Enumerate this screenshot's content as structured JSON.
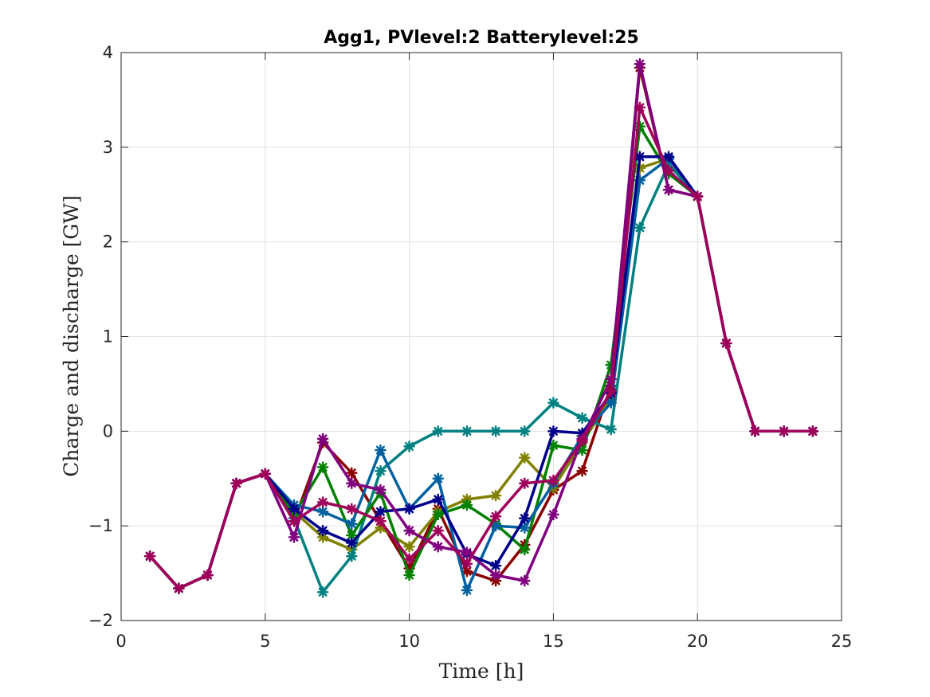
{
  "chart_data": {
    "type": "line",
    "title": "Agg1, PVlevel:2 Batterylevel:25",
    "xlabel": "Time [h]",
    "ylabel": "Charge and discharge [GW]",
    "xlim": [
      0,
      25
    ],
    "ylim": [
      -2,
      4
    ],
    "xticks": [
      0,
      5,
      10,
      15,
      20,
      25
    ],
    "yticks": [
      -2,
      -1,
      0,
      1,
      2,
      3,
      4
    ],
    "xtick_labels": [
      "0",
      "5",
      "10",
      "15",
      "20",
      "25"
    ],
    "ytick_labels": [
      "−2",
      "−1",
      "0",
      "1",
      "2",
      "3",
      "4"
    ],
    "grid": true,
    "marker": "asterisk",
    "x": [
      1,
      2,
      3,
      4,
      5,
      6,
      7,
      8,
      9,
      10,
      11,
      12,
      13,
      14,
      15,
      16,
      17,
      18,
      19,
      20,
      21,
      22,
      23,
      24
    ],
    "series": [
      {
        "color": "#8B0000",
        "values": [
          -1.32,
          -1.66,
          -1.52,
          -0.55,
          -0.45,
          -0.95,
          -0.12,
          -0.44,
          -0.95,
          -1.45,
          -0.82,
          -1.48,
          -1.58,
          -1.2,
          -0.62,
          -0.42,
          0.48,
          3.84,
          2.55,
          2.48,
          0.93,
          0,
          0,
          0
        ]
      },
      {
        "color": "#808000",
        "values": [
          -1.32,
          -1.66,
          -1.52,
          -0.55,
          -0.45,
          -0.85,
          -1.12,
          -1.25,
          -1.02,
          -1.22,
          -0.85,
          -0.72,
          -0.68,
          -0.28,
          -0.6,
          -0.12,
          0.35,
          2.78,
          2.88,
          2.48,
          0.93,
          0,
          0,
          0
        ]
      },
      {
        "color": "#008080",
        "values": [
          -1.32,
          -1.66,
          -1.52,
          -0.55,
          -0.45,
          -0.92,
          -1.7,
          -1.32,
          -0.42,
          -0.16,
          0,
          0,
          0,
          0,
          0.3,
          0.14,
          0.02,
          2.15,
          2.82,
          2.48,
          0.93,
          0,
          0,
          0
        ]
      },
      {
        "color": "#008000",
        "values": [
          -1.32,
          -1.66,
          -1.52,
          -0.55,
          -0.45,
          -0.88,
          -0.38,
          -1.1,
          -0.65,
          -1.52,
          -0.88,
          -0.78,
          -0.98,
          -1.25,
          -0.15,
          -0.2,
          0.7,
          3.22,
          2.72,
          2.48,
          0.93,
          0,
          0,
          0
        ]
      },
      {
        "color": "#0060A0",
        "values": [
          -1.32,
          -1.66,
          -1.52,
          -0.55,
          -0.45,
          -0.78,
          -0.85,
          -0.98,
          -0.2,
          -0.82,
          -0.5,
          -1.68,
          -1.0,
          -1.02,
          -0.55,
          -0.05,
          0.3,
          2.65,
          2.88,
          2.48,
          0.93,
          0,
          0,
          0
        ]
      },
      {
        "color": "#00008B",
        "values": [
          -1.32,
          -1.66,
          -1.52,
          -0.55,
          -0.45,
          -0.82,
          -1.05,
          -1.18,
          -0.85,
          -0.82,
          -0.72,
          -1.3,
          -1.42,
          -0.92,
          0.0,
          -0.02,
          0.4,
          2.9,
          2.9,
          2.48,
          0.93,
          0,
          0,
          0
        ]
      },
      {
        "color": "#800080",
        "values": [
          -1.32,
          -1.66,
          -1.52,
          -0.55,
          -0.45,
          -1.12,
          -0.08,
          -0.55,
          -0.62,
          -1.05,
          -1.22,
          -1.28,
          -1.52,
          -1.58,
          -0.88,
          -0.08,
          0.55,
          3.88,
          2.55,
          2.48,
          0.93,
          0,
          0,
          0
        ]
      },
      {
        "color": "#A0005A",
        "values": [
          -1.32,
          -1.66,
          -1.52,
          -0.55,
          -0.45,
          -0.95,
          -0.75,
          -0.82,
          -0.95,
          -1.35,
          -1.05,
          -1.4,
          -0.9,
          -0.55,
          -0.52,
          -0.1,
          0.42,
          3.42,
          2.75,
          2.48,
          0.93,
          0,
          0,
          0
        ]
      }
    ]
  }
}
